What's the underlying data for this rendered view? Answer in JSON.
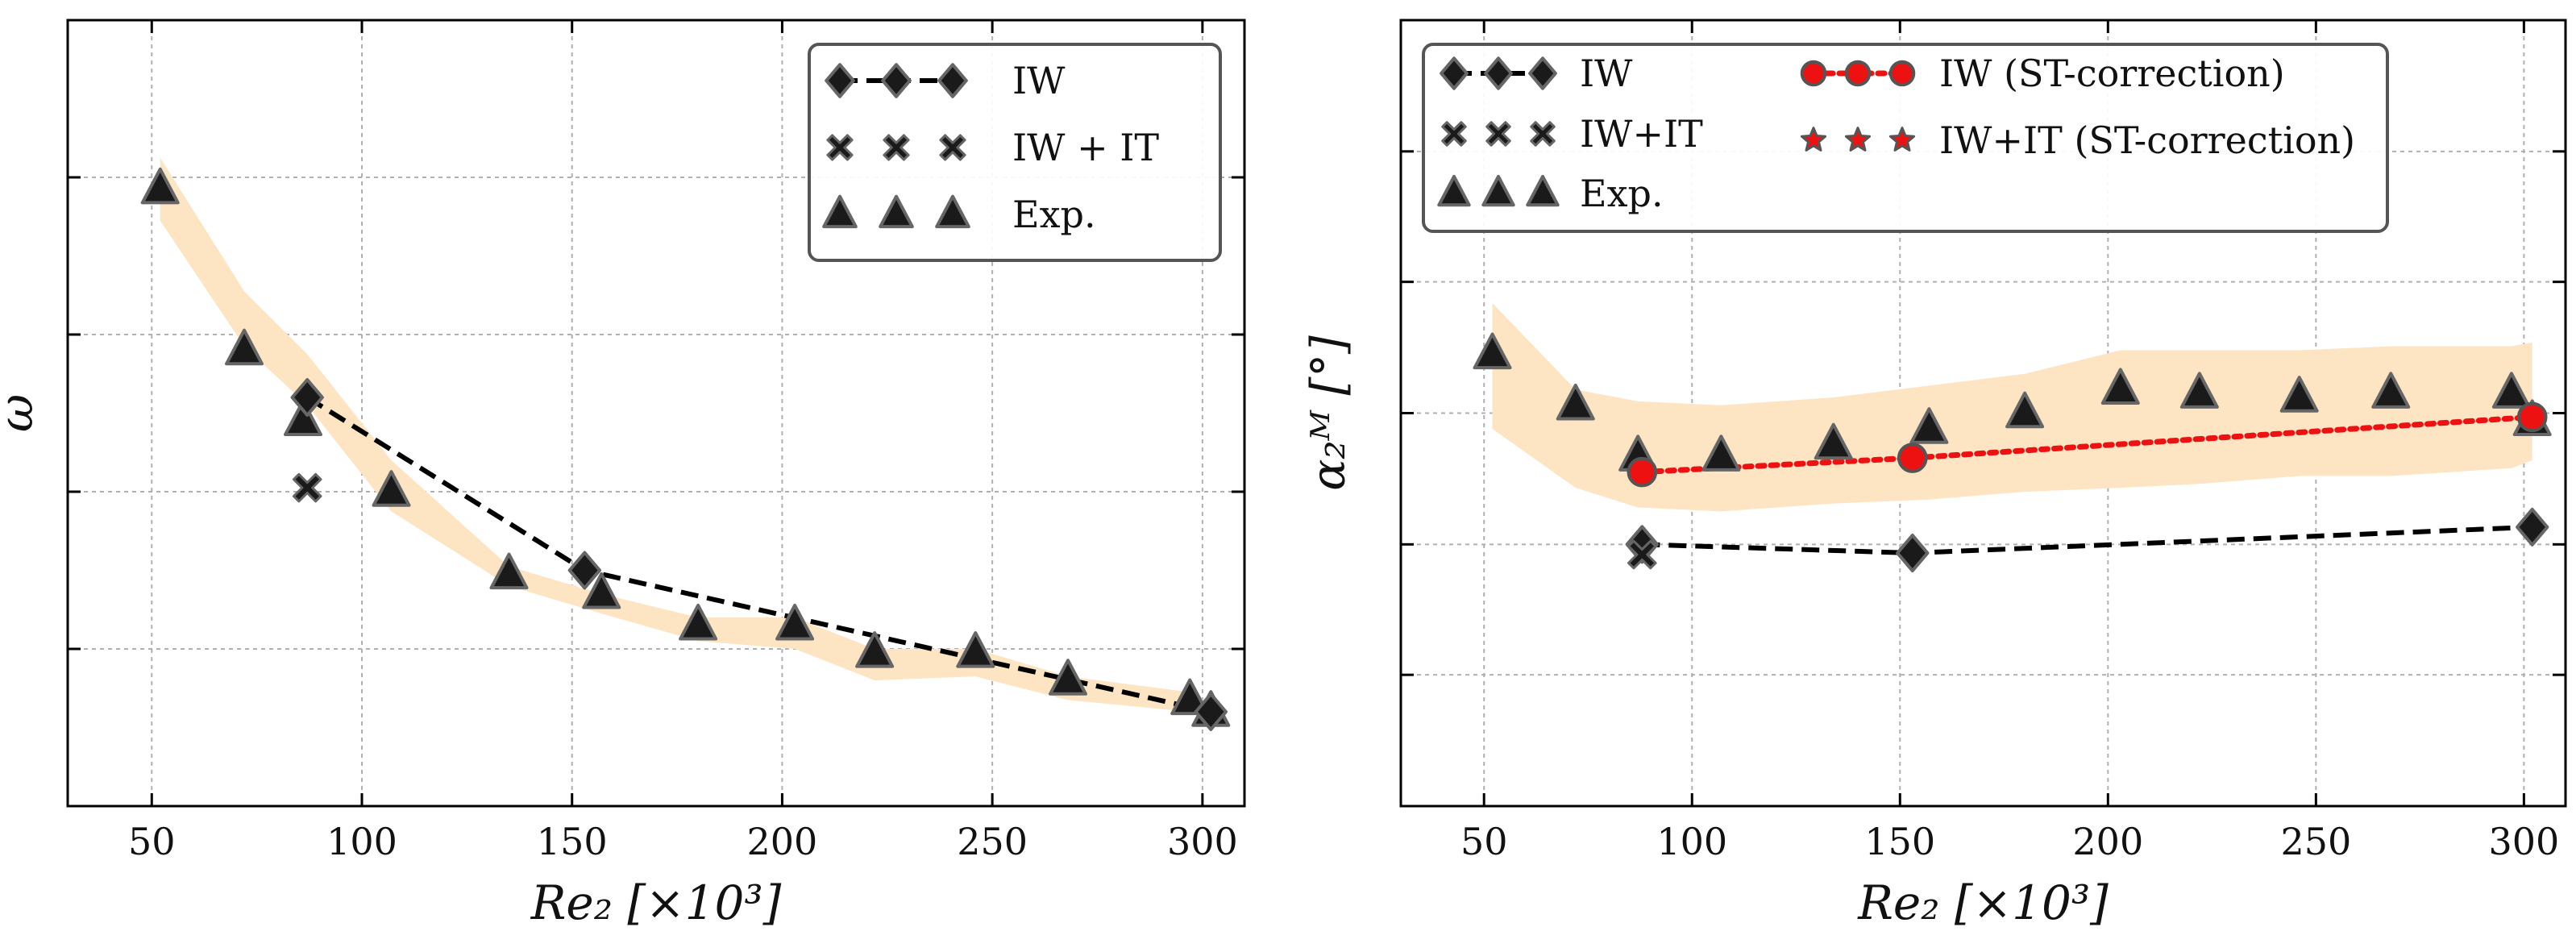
{
  "chart_data": [
    {
      "type": "line",
      "panel": "left",
      "ylabel": "ω",
      "xlabel": "Re₂ [×10³]",
      "xlim": [
        30,
        310
      ],
      "ylim": [
        0,
        1
      ],
      "xticks": [
        50,
        100,
        150,
        200,
        250,
        300
      ],
      "xtick_labels": [
        "50",
        "100",
        "150",
        "200",
        "250",
        "300"
      ],
      "yticks": [
        0.2,
        0.4,
        0.6,
        0.8
      ],
      "grid": true,
      "legend_position": "top-right",
      "legend": [
        "IW",
        "IW + IT",
        "Exp."
      ],
      "band": {
        "x": [
          52,
          72,
          87,
          107,
          135,
          157,
          180,
          203,
          222,
          246,
          268,
          297,
          302
        ],
        "low": [
          0.745,
          0.585,
          0.51,
          0.375,
          0.28,
          0.245,
          0.21,
          0.2,
          0.16,
          0.165,
          0.135,
          0.12,
          0.11
        ],
        "high": [
          0.825,
          0.655,
          0.575,
          0.44,
          0.305,
          0.27,
          0.24,
          0.24,
          0.2,
          0.2,
          0.165,
          0.145,
          0.13
        ]
      },
      "series": [
        {
          "name": "IW",
          "marker": "diamond",
          "line": "dashed",
          "x": [
            87,
            153,
            302
          ],
          "y": [
            0.52,
            0.3,
            0.12
          ]
        },
        {
          "name": "IW + IT",
          "marker": "x",
          "line": "none",
          "x": [
            87
          ],
          "y": [
            0.405
          ]
        },
        {
          "name": "Exp.",
          "marker": "triangle",
          "line": "none",
          "x": [
            52,
            72,
            86,
            107,
            135,
            157,
            180,
            203,
            222,
            246,
            268,
            297,
            302
          ],
          "y": [
            0.785,
            0.58,
            0.49,
            0.4,
            0.295,
            0.27,
            0.23,
            0.23,
            0.195,
            0.195,
            0.16,
            0.135,
            0.12
          ]
        }
      ]
    },
    {
      "type": "line",
      "panel": "right",
      "ylabel": "α₂ᴹ [°]",
      "xlabel": "Re₂ [×10³]",
      "xlim": [
        30,
        310
      ],
      "ylim": [
        0,
        1
      ],
      "xticks": [
        50,
        100,
        150,
        200,
        250,
        300
      ],
      "xtick_labels": [
        "50",
        "100",
        "150",
        "200",
        "250",
        "300"
      ],
      "yticks": [
        0.167,
        0.333,
        0.5,
        0.667,
        0.833
      ],
      "grid": true,
      "legend_position": "top",
      "legend": [
        "IW",
        "IW+IT",
        "Exp.",
        "IW (ST-correction)",
        "IW+IT (ST-correction)"
      ],
      "band": {
        "x": [
          52,
          72,
          87,
          107,
          134,
          157,
          180,
          203,
          222,
          246,
          268,
          297,
          302
        ],
        "low": [
          0.48,
          0.405,
          0.38,
          0.375,
          0.385,
          0.39,
          0.4,
          0.405,
          0.41,
          0.42,
          0.42,
          0.43,
          0.44
        ],
        "high": [
          0.64,
          0.53,
          0.515,
          0.51,
          0.52,
          0.535,
          0.55,
          0.58,
          0.58,
          0.58,
          0.585,
          0.585,
          0.59
        ]
      },
      "series": [
        {
          "name": "IW",
          "marker": "diamond",
          "line": "dashed",
          "color": "#000000",
          "x": [
            88,
            153,
            302
          ],
          "y": [
            0.333,
            0.322,
            0.355
          ]
        },
        {
          "name": "IW+IT",
          "marker": "x",
          "line": "none",
          "color": "#000000",
          "x": [
            88
          ],
          "y": [
            0.32
          ]
        },
        {
          "name": "Exp.",
          "marker": "triangle",
          "line": "none",
          "color": "#000000",
          "x": [
            52,
            72,
            87,
            107,
            134,
            157,
            180,
            203,
            222,
            246,
            268,
            297,
            302
          ],
          "y": [
            0.575,
            0.51,
            0.445,
            0.445,
            0.46,
            0.48,
            0.5,
            0.53,
            0.525,
            0.52,
            0.525,
            0.525,
            0.49
          ]
        },
        {
          "name": "IW (ST-correction)",
          "marker": "circle",
          "line": "dotted",
          "color": "#ee1111",
          "x": [
            88,
            153,
            302
          ],
          "y": [
            0.425,
            0.443,
            0.495
          ]
        },
        {
          "name": "IW+IT (ST-correction)",
          "marker": "star",
          "line": "none",
          "color": "#ee1111",
          "x": [],
          "y": []
        }
      ]
    }
  ]
}
